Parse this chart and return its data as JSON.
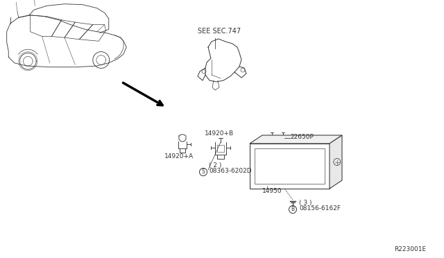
{
  "bg_color": "#ffffff",
  "diagram_ref": "R223001E",
  "lc": "#333333",
  "lw": 0.7,
  "fs": 6.5,
  "labels": {
    "see_sec": "SEE SEC.747",
    "part_14920A": "14920+A",
    "part_14920B": "14920+B",
    "part_22650P": "22650P",
    "part_14950": "14950",
    "bolt1": "08363-6202D",
    "bolt1_qty": "( 2 )",
    "bolt1_prefix": "S",
    "bolt2": "08156-6162F",
    "bolt2_qty": "( 3 )",
    "bolt2_prefix": "B"
  }
}
